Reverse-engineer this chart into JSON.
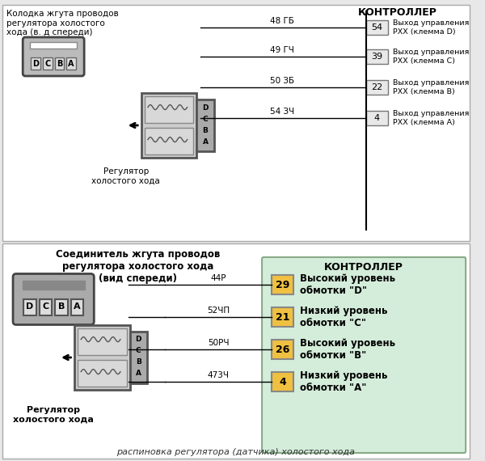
{
  "bg_color": "#e8e8e8",
  "title_bottom": "распиновка регулятора (датчика) холостого хода",
  "section1": {
    "connector_label": "Колодка жгута проводов\nрегулятора холостого\nхода (в. д спереди)",
    "controller_label": "КОНТРОЛЛЕР",
    "regulator_label": "Регулятор\nхолостого хода",
    "pins": [
      "D",
      "C",
      "B",
      "A"
    ],
    "wires": [
      {
        "label": "48 ГБ",
        "num": "54",
        "desc": "Выход управления\nРХХ (клемма D)"
      },
      {
        "label": "49 ГЧ",
        "num": "39",
        "desc": "Выход управления\nРХХ (клемма С)"
      },
      {
        "label": "50 ЗБ",
        "num": "22",
        "desc": "Выход управления\nРХХ (клемма B)"
      },
      {
        "label": "54 ЗЧ",
        "num": "4",
        "desc": "Выход управления\nРХХ (клемма А)"
      }
    ]
  },
  "section2": {
    "connector_label": "Соединитель жгута проводов\nрегулятора холостого хода\n(вид спереди)",
    "controller_label": "КОНТРОЛЛЕР",
    "regulator_label": "Регулятор\nхолостого хода",
    "pins": [
      "D",
      "C",
      "B",
      "A"
    ],
    "wires": [
      {
        "label": "44Р",
        "num": "29",
        "desc": "Высокий уровень\nобмотки \"D\""
      },
      {
        "label": "52ЧП",
        "num": "21",
        "desc": "Низкий уровень\nобмотки \"C\""
      },
      {
        "label": "50РЧ",
        "num": "26",
        "desc": "Высокий уровень\nобмотки \"B\""
      },
      {
        "label": "473Ч",
        "num": "4",
        "desc": "Низкий уровень\nобмотки \"А\""
      }
    ],
    "box_color": "#d4edda",
    "num_color": "#f0c040"
  }
}
